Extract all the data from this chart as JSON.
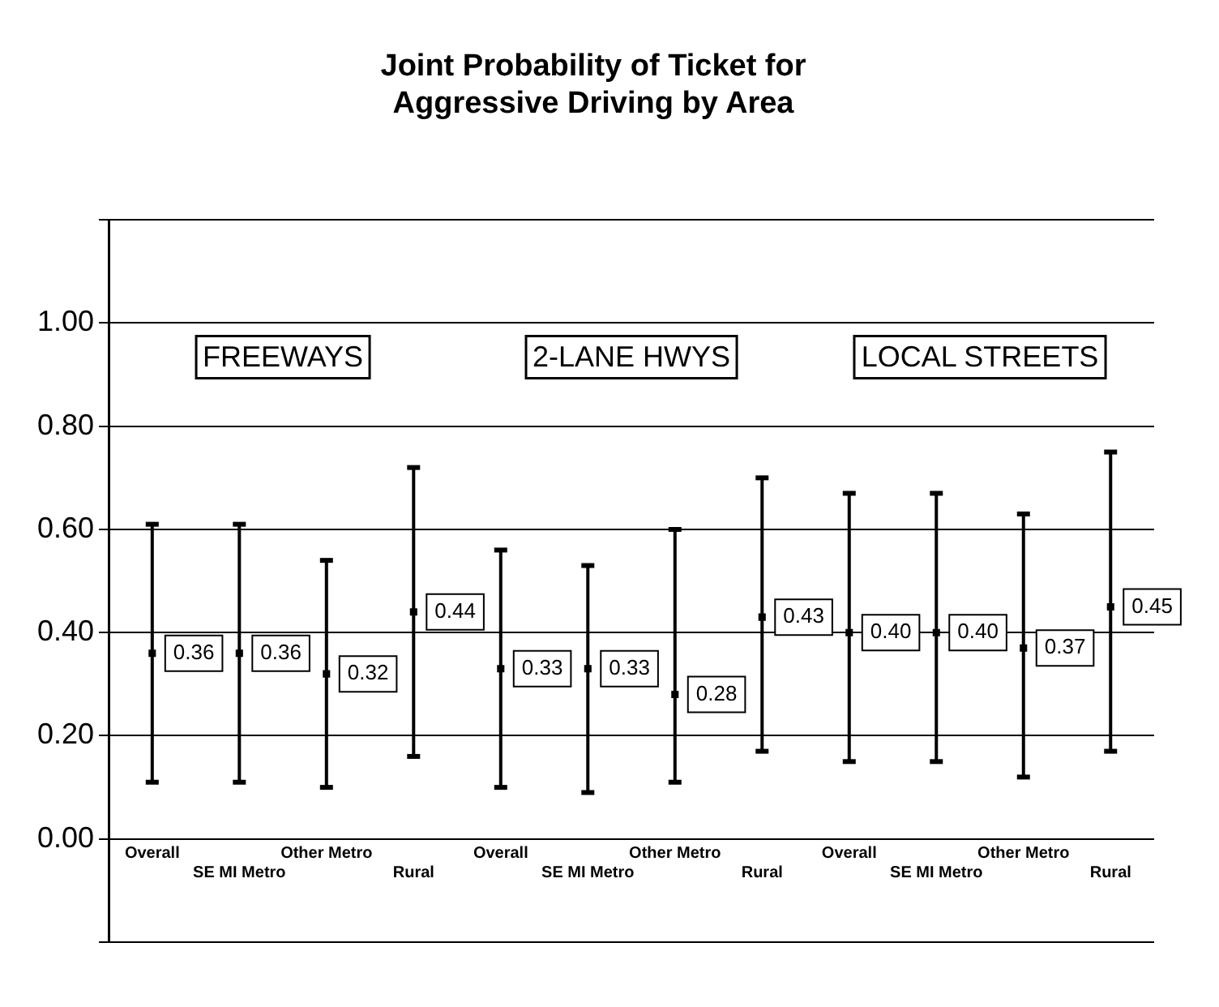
{
  "chart_data": {
    "type": "scatter",
    "title": "Joint Probability of Ticket for Aggressive Driving by Area",
    "categories": [
      "Overall",
      "SE MI Metro",
      "Other Metro",
      "Rural",
      "Overall",
      "SE MI Metro",
      "Other Metro",
      "Rural",
      "Overall",
      "SE MI Metro",
      "Other Metro",
      "Rural"
    ],
    "series": [
      {
        "color": "#000000",
        "values": [
          0.36,
          0.36,
          0.32,
          0.44,
          0.33,
          0.33,
          0.28,
          0.43,
          0.4,
          0.4,
          0.37,
          0.45
        ],
        "value_labels": [
          "0.36",
          "0.36",
          "0.32",
          "0.44",
          "0.33",
          "0.33",
          "0.28",
          "0.43",
          "0.40",
          "0.40",
          "0.37",
          "0.45"
        ],
        "errors": [
          [
            0.11,
            0.61
          ],
          [
            0.11,
            0.61
          ],
          [
            0.1,
            0.54
          ],
          [
            0.16,
            0.72
          ],
          [
            0.1,
            0.56
          ],
          [
            0.09,
            0.53
          ],
          [
            0.11,
            0.6
          ],
          [
            0.17,
            0.7
          ],
          [
            0.15,
            0.67
          ],
          [
            0.15,
            0.67
          ],
          [
            0.12,
            0.63
          ],
          [
            0.17,
            0.75
          ]
        ]
      }
    ],
    "annotations": [
      "FREEWAYS",
      "2-LANE HWYS",
      "LOCAL STREETS"
    ],
    "ylim": [
      -0.2,
      1.2
    ],
    "yticks": [
      {
        "value": -0.2,
        "label": null
      },
      {
        "value": 0,
        "label": "0.00"
      },
      {
        "value": 0.2,
        "label": "0.20"
      },
      {
        "value": 0.4,
        "label": "0.40"
      },
      {
        "value": 0.6,
        "label": "0.60"
      },
      {
        "value": 0.8,
        "label": "0.80"
      },
      {
        "value": 1,
        "label": "1.00"
      },
      {
        "value": 1.2,
        "label": null
      }
    ],
    "grid": "y",
    "legend": false,
    "marker": "square"
  }
}
